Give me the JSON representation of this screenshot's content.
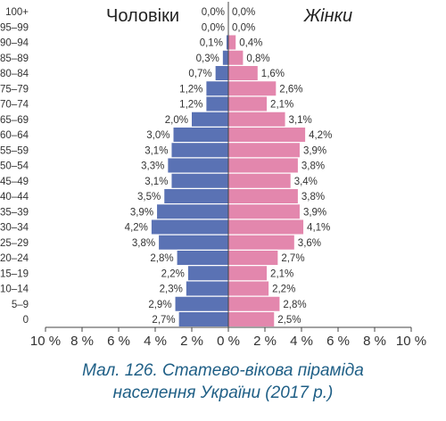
{
  "chart_data": {
    "type": "bar",
    "subtype": "population-pyramid",
    "legend": {
      "left": "Чоловіки",
      "right": "Жінки"
    },
    "colors": {
      "men": "#5a72b4",
      "women": "#e387ad",
      "axis": "#444444",
      "text": "#333333"
    },
    "categories": [
      "100+",
      "95–99",
      "90–94",
      "85–89",
      "80–84",
      "75–79",
      "70–74",
      "65–69",
      "60–64",
      "55–59",
      "50–54",
      "45–49",
      "40–44",
      "35–39",
      "30–34",
      "25–29",
      "20–24",
      "15–19",
      "10–14",
      "5–9",
      "0"
    ],
    "series": [
      {
        "name": "Чоловіки",
        "values": [
          0.0,
          0.0,
          0.1,
          0.3,
          0.7,
          1.2,
          1.2,
          2.0,
          3.0,
          3.1,
          3.3,
          3.1,
          3.5,
          3.9,
          4.2,
          3.8,
          2.8,
          2.2,
          2.3,
          2.9,
          2.7
        ],
        "labels": [
          "0,0%",
          "0,0%",
          "0,1%",
          "0,3%",
          "0,7%",
          "1,2%",
          "1,2%",
          "2,0%",
          "3,0%",
          "3,1%",
          "3,3%",
          "3,1%",
          "3,5%",
          "3,9%",
          "4,2%",
          "3,8%",
          "2,8%",
          "2,2%",
          "2,3%",
          "2,9%",
          "2,7%"
        ]
      },
      {
        "name": "Жінки",
        "values": [
          0.0,
          0.0,
          0.4,
          0.8,
          1.6,
          2.6,
          2.1,
          3.1,
          4.2,
          3.9,
          3.8,
          3.4,
          3.8,
          3.9,
          4.1,
          3.6,
          2.7,
          2.1,
          2.2,
          2.8,
          2.5
        ],
        "labels": [
          "0,0%",
          "0,0%",
          "0,4%",
          "0,8%",
          "1,6%",
          "2,6%",
          "2,1%",
          "3,1%",
          "4,2%",
          "3,9%",
          "3,8%",
          "3,4%",
          "3,8%",
          "3,9%",
          "4,1%",
          "3,6%",
          "2,7%",
          "2,1%",
          "2,2%",
          "2,8%",
          "2,5%"
        ]
      }
    ],
    "x_ticks": [
      "10 %",
      "8 %",
      "6 %",
      "4 %",
      "2 %",
      "0 %",
      "2 %",
      "4 %",
      "6 %",
      "8 %",
      "10 %"
    ],
    "xlim": [
      -10,
      10
    ]
  },
  "caption": {
    "line1": "Мал. 126. Статево-вікова піраміда",
    "line2": "населення України (2017 р.)"
  }
}
